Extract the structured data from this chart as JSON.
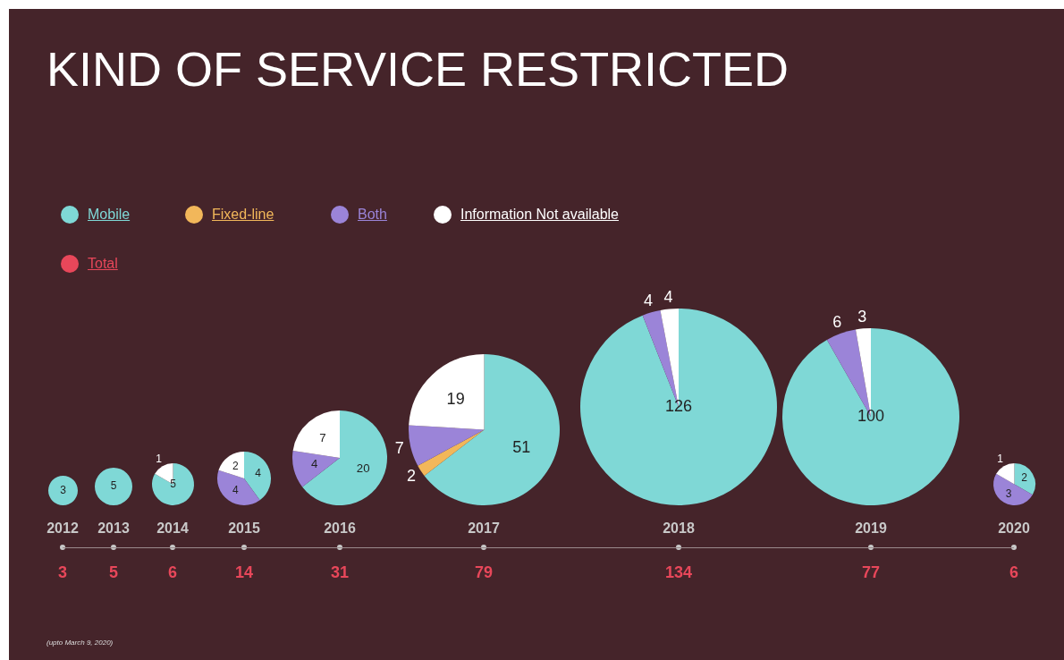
{
  "chart_data": [
    {
      "type": "other",
      "title": "KIND OF SERVICE RESTRICTED",
      "annotations": [
        "Total",
        "(upto March 9, 2020)"
      ]
    },
    {
      "type": "pie",
      "title": "2012",
      "categories": [
        "Mobile",
        "Fixed-line",
        "Both",
        "Information  Not available"
      ],
      "values": [
        3,
        null,
        null,
        null
      ],
      "colors": [
        "#7fd8d6",
        "#f2b75a",
        "#9b84d8",
        "#ffffff"
      ],
      "data_labels": true,
      "annotations": [
        "3"
      ],
      "legend": "top"
    },
    {
      "type": "pie",
      "title": "2013",
      "values": [
        5,
        null,
        null,
        null
      ],
      "colors": [
        "#7fd8d6",
        "#f2b75a",
        "#9b84d8",
        "#ffffff"
      ],
      "data_labels": true,
      "annotations": [
        "5"
      ]
    },
    {
      "type": "pie",
      "title": "2014",
      "values": [
        5,
        null,
        null,
        1
      ],
      "colors": [
        "#7fd8d6",
        "#f2b75a",
        "#9b84d8",
        "#ffffff"
      ],
      "data_labels": true,
      "annotations": [
        "6"
      ]
    },
    {
      "type": "pie",
      "title": "2015",
      "values": [
        4,
        null,
        4,
        2
      ],
      "colors": [
        "#7fd8d6",
        "#f2b75a",
        "#9b84d8",
        "#ffffff"
      ],
      "data_labels": true,
      "annotations": [
        "14"
      ]
    },
    {
      "type": "pie",
      "title": "2016",
      "values": [
        20,
        null,
        4,
        7
      ],
      "colors": [
        "#7fd8d6",
        "#f2b75a",
        "#9b84d8",
        "#ffffff"
      ],
      "data_labels": true,
      "annotations": [
        "31"
      ]
    },
    {
      "type": "pie",
      "title": "2017",
      "values": [
        51,
        2,
        7,
        19
      ],
      "colors": [
        "#7fd8d6",
        "#f2b75a",
        "#9b84d8",
        "#ffffff"
      ],
      "data_labels": true,
      "annotations": [
        "79"
      ]
    },
    {
      "type": "pie",
      "title": "2018",
      "values": [
        126,
        null,
        4,
        4
      ],
      "colors": [
        "#7fd8d6",
        "#f2b75a",
        "#9b84d8",
        "#ffffff"
      ],
      "data_labels": true,
      "annotations": [
        "134"
      ]
    },
    {
      "type": "pie",
      "title": "2019",
      "values": [
        100,
        null,
        6,
        3
      ],
      "colors": [
        "#7fd8d6",
        "#f2b75a",
        "#9b84d8",
        "#ffffff"
      ],
      "data_labels": true,
      "annotations": [
        "77"
      ]
    },
    {
      "type": "pie",
      "title": "2020",
      "values": [
        2,
        null,
        3,
        1
      ],
      "colors": [
        "#7fd8d6",
        "#f2b75a",
        "#9b84d8",
        "#ffffff"
      ],
      "data_labels": true,
      "annotations": [
        "6"
      ]
    }
  ]
}
